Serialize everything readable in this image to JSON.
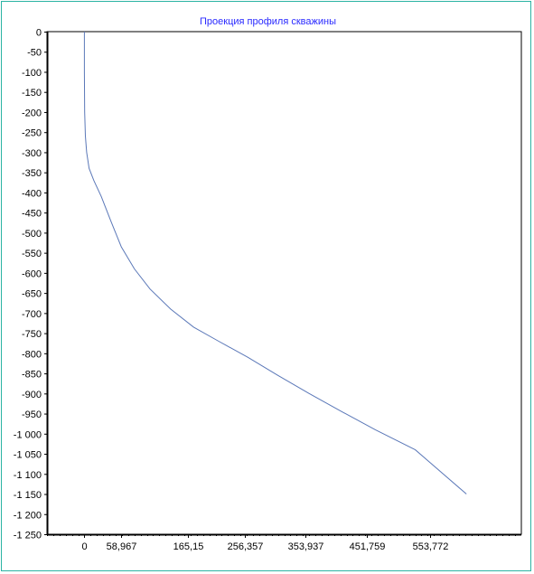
{
  "chart_data": {
    "type": "line",
    "title": "Проекция профиля скважины",
    "xlabel": "",
    "ylabel": "",
    "xlim": [
      -60,
      700
    ],
    "ylim": [
      -1250,
      0
    ],
    "x_ticks": [
      0,
      58.967,
      165.15,
      256.357,
      353.937,
      451.759,
      553.772
    ],
    "x_tick_labels": [
      "0",
      "58,967",
      "165,15",
      "256,357",
      "353,937",
      "451,759",
      "553,772"
    ],
    "y_ticks": [
      0,
      -50,
      -100,
      -150,
      -200,
      -250,
      -300,
      -350,
      -400,
      -450,
      -500,
      -550,
      -600,
      -650,
      -700,
      -750,
      -800,
      -850,
      -900,
      -950,
      -1000,
      -1050,
      -1100,
      -1150,
      -1200,
      -1250
    ],
    "y_tick_labels": [
      "0",
      "-50",
      "-100",
      "-150",
      "-200",
      "-250",
      "-300",
      "-350",
      "-400",
      "-450",
      "-500",
      "-550",
      "-600",
      "-650",
      "-700",
      "-750",
      "-800",
      "-850",
      "-900",
      "-950",
      "-1 000",
      "-1 050",
      "-1 100",
      "-1 150",
      "-1 200",
      "-1 250"
    ],
    "grid": true,
    "line_color": "#5b78b8",
    "grid_color": "#c8c8c8",
    "series": [
      {
        "x": [
          0,
          0,
          0.4,
          1.5,
          3.5,
          7.5,
          15,
          27,
          42,
          59,
          80,
          105,
          138,
          175,
          215,
          262,
          310,
          360,
          412,
          466,
          530,
          612
        ],
        "y": [
          0,
          -100,
          -200,
          -260,
          -300,
          -340,
          -370,
          -410,
          -470,
          -535,
          -590,
          -640,
          -690,
          -735,
          -770,
          -810,
          -855,
          -900,
          -945,
          -990,
          -1040,
          -1150
        ]
      }
    ]
  }
}
